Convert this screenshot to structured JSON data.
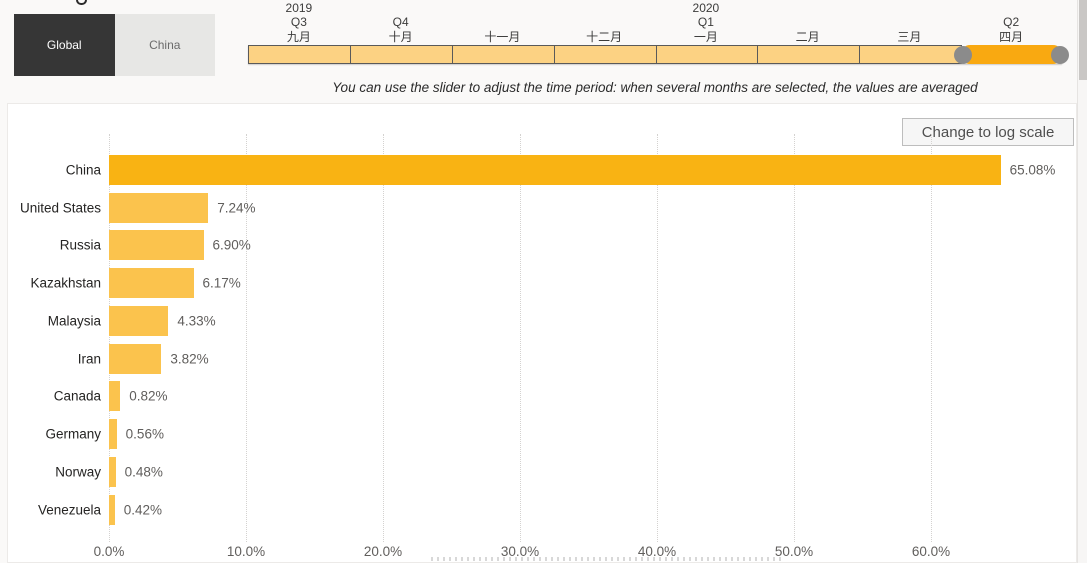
{
  "toggle": {
    "global_label": "Global",
    "china_label": "China"
  },
  "timeline": {
    "years": [
      {
        "label": "2019",
        "segment_index": 0
      },
      {
        "label": "2020",
        "segment_index": 4
      }
    ],
    "quarters": [
      {
        "label": "Q3",
        "segment_index": 0
      },
      {
        "label": "Q4",
        "segment_index": 1
      },
      {
        "label": "Q1",
        "segment_index": 4
      },
      {
        "label": "Q2",
        "segment_index": 7
      }
    ],
    "months": [
      "九月",
      "十月",
      "十一月",
      "十二月",
      "一月",
      "二月",
      "三月",
      "四月"
    ],
    "selected_month_index": 7,
    "hint": "You can use the slider to adjust the time period: when several months are selected, the values are averaged"
  },
  "chart": {
    "log_button_label": "Change to log scale"
  },
  "chart_data": {
    "type": "bar",
    "orientation": "horizontal",
    "categories": [
      "China",
      "United States",
      "Russia",
      "Kazakhstan",
      "Malaysia",
      "Iran",
      "Canada",
      "Germany",
      "Norway",
      "Venezuela"
    ],
    "values": [
      65.08,
      7.24,
      6.9,
      6.17,
      4.33,
      3.82,
      0.82,
      0.56,
      0.48,
      0.42
    ],
    "value_labels": [
      "65.08%",
      "7.24%",
      "6.90%",
      "6.17%",
      "4.33%",
      "3.82%",
      "0.82%",
      "0.56%",
      "0.48%",
      "0.42%"
    ],
    "x_ticks": [
      "0.0%",
      "10.0%",
      "20.0%",
      "30.0%",
      "40.0%",
      "50.0%",
      "60.0%"
    ],
    "x_tick_values": [
      0,
      10,
      20,
      30,
      40,
      50,
      60
    ],
    "xlim": [
      0,
      70
    ],
    "grid": "vertical-dotted",
    "legend": "none",
    "highlight_category": "China",
    "colors": {
      "highlight_bar": "#F9B313",
      "bar": "#FBC34D",
      "selected_segment": "#F9A911",
      "segment": "#FCD283",
      "segment_border": "#5A5A5A",
      "handle": "#8B8B8B",
      "active_toggle_bg": "#363636",
      "inactive_toggle_bg": "#E7E7E5"
    }
  }
}
